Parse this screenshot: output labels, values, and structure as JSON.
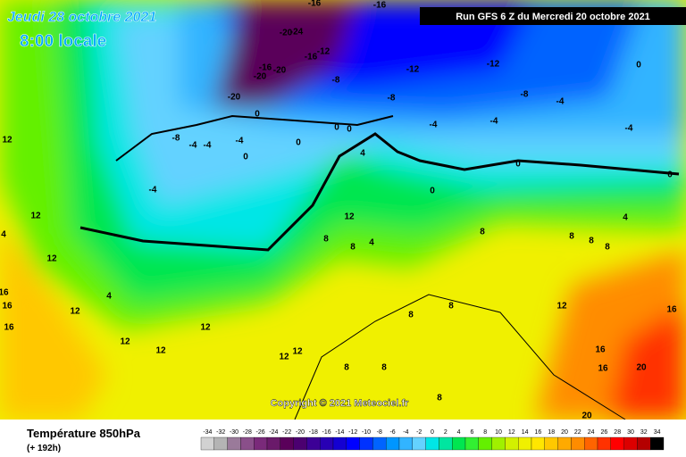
{
  "header": {
    "date": "Jeudi 28 octobre 2021",
    "time": "8:00 locale",
    "run": "Run GFS 6 Z du Mercredi 20 octobre 2021"
  },
  "map": {
    "copyright": "Copyright © 2021 Meteociel.fr",
    "contour_labels": [
      -16,
      -16,
      -20,
      -24,
      -12,
      -16,
      -16,
      -20,
      -20,
      -20,
      -12,
      -12,
      -8,
      -8,
      -8,
      0,
      -4,
      -4,
      -4,
      -4,
      -8,
      -4,
      -4,
      -4,
      0,
      0,
      0,
      -4,
      0,
      0,
      4,
      0,
      0,
      0,
      4,
      12,
      12,
      4,
      12,
      16,
      16,
      16,
      4,
      12,
      12,
      12,
      12,
      12,
      12,
      8,
      8,
      8,
      12,
      16,
      16,
      20,
      20,
      16,
      8,
      8,
      8,
      8,
      8,
      8,
      4,
      12,
      8,
      8
    ]
  },
  "footer": {
    "title": "Température 850hPa",
    "subtitle": "(+ 192h)"
  },
  "colorbar": {
    "labels": [
      -34,
      -32,
      -30,
      -28,
      -26,
      -24,
      -22,
      -20,
      -18,
      -16,
      -14,
      -12,
      -10,
      -8,
      -6,
      -4,
      -2,
      0,
      2,
      4,
      6,
      8,
      10,
      12,
      14,
      16,
      18,
      20,
      22,
      24,
      26,
      28,
      30,
      32,
      34
    ],
    "colors": [
      "#d2d2d2",
      "#b4b4b4",
      "#9a7a9a",
      "#8a4f8a",
      "#7a2a7a",
      "#6a1a6a",
      "#5a005a",
      "#4b0070",
      "#3c0096",
      "#2800b4",
      "#1400d2",
      "#0000ff",
      "#0032ff",
      "#0064ff",
      "#0096ff",
      "#32b4ff",
      "#64d2ff",
      "#00e6e6",
      "#00e6a0",
      "#00e650",
      "#32f032",
      "#64f000",
      "#a0f000",
      "#d2f000",
      "#f0f000",
      "#ffe600",
      "#ffc800",
      "#ffaa00",
      "#ff8c00",
      "#ff6400",
      "#ff3200",
      "#ff0000",
      "#dc0000",
      "#b40000",
      "#000000"
    ]
  }
}
